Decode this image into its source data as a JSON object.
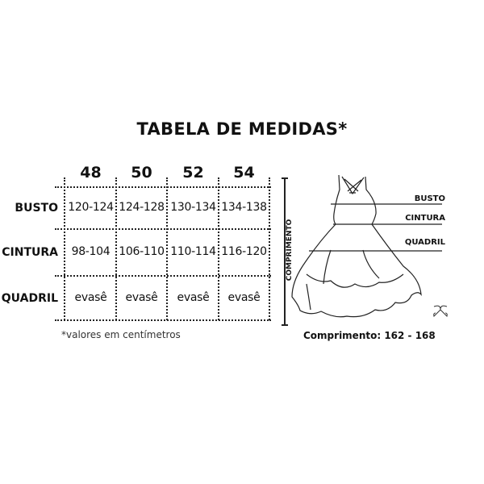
{
  "title": "TABELA DE MEDIDAS*",
  "table": {
    "sizes": [
      "48",
      "50",
      "52",
      "54"
    ],
    "rows": [
      {
        "label": "BUSTO",
        "values": [
          "120-124",
          "124-128",
          "130-134",
          "134-138"
        ]
      },
      {
        "label": "CINTURA",
        "values": [
          "98-104",
          "106-110",
          "110-114",
          "116-120"
        ]
      },
      {
        "label": "QUADRIL",
        "values": [
          "evasê",
          "evasê",
          "evasê",
          "evasê"
        ]
      }
    ],
    "note": "*valores em centímetros"
  },
  "diagram": {
    "vertical_label": "COMPRIMENTO",
    "labels": {
      "busto": "BUSTO",
      "cintura": "CINTURA",
      "quadril": "QUADRIL"
    },
    "length_text": "Comprimento: 162 - 168",
    "logo_icon": "ornamental-logo-icon"
  }
}
